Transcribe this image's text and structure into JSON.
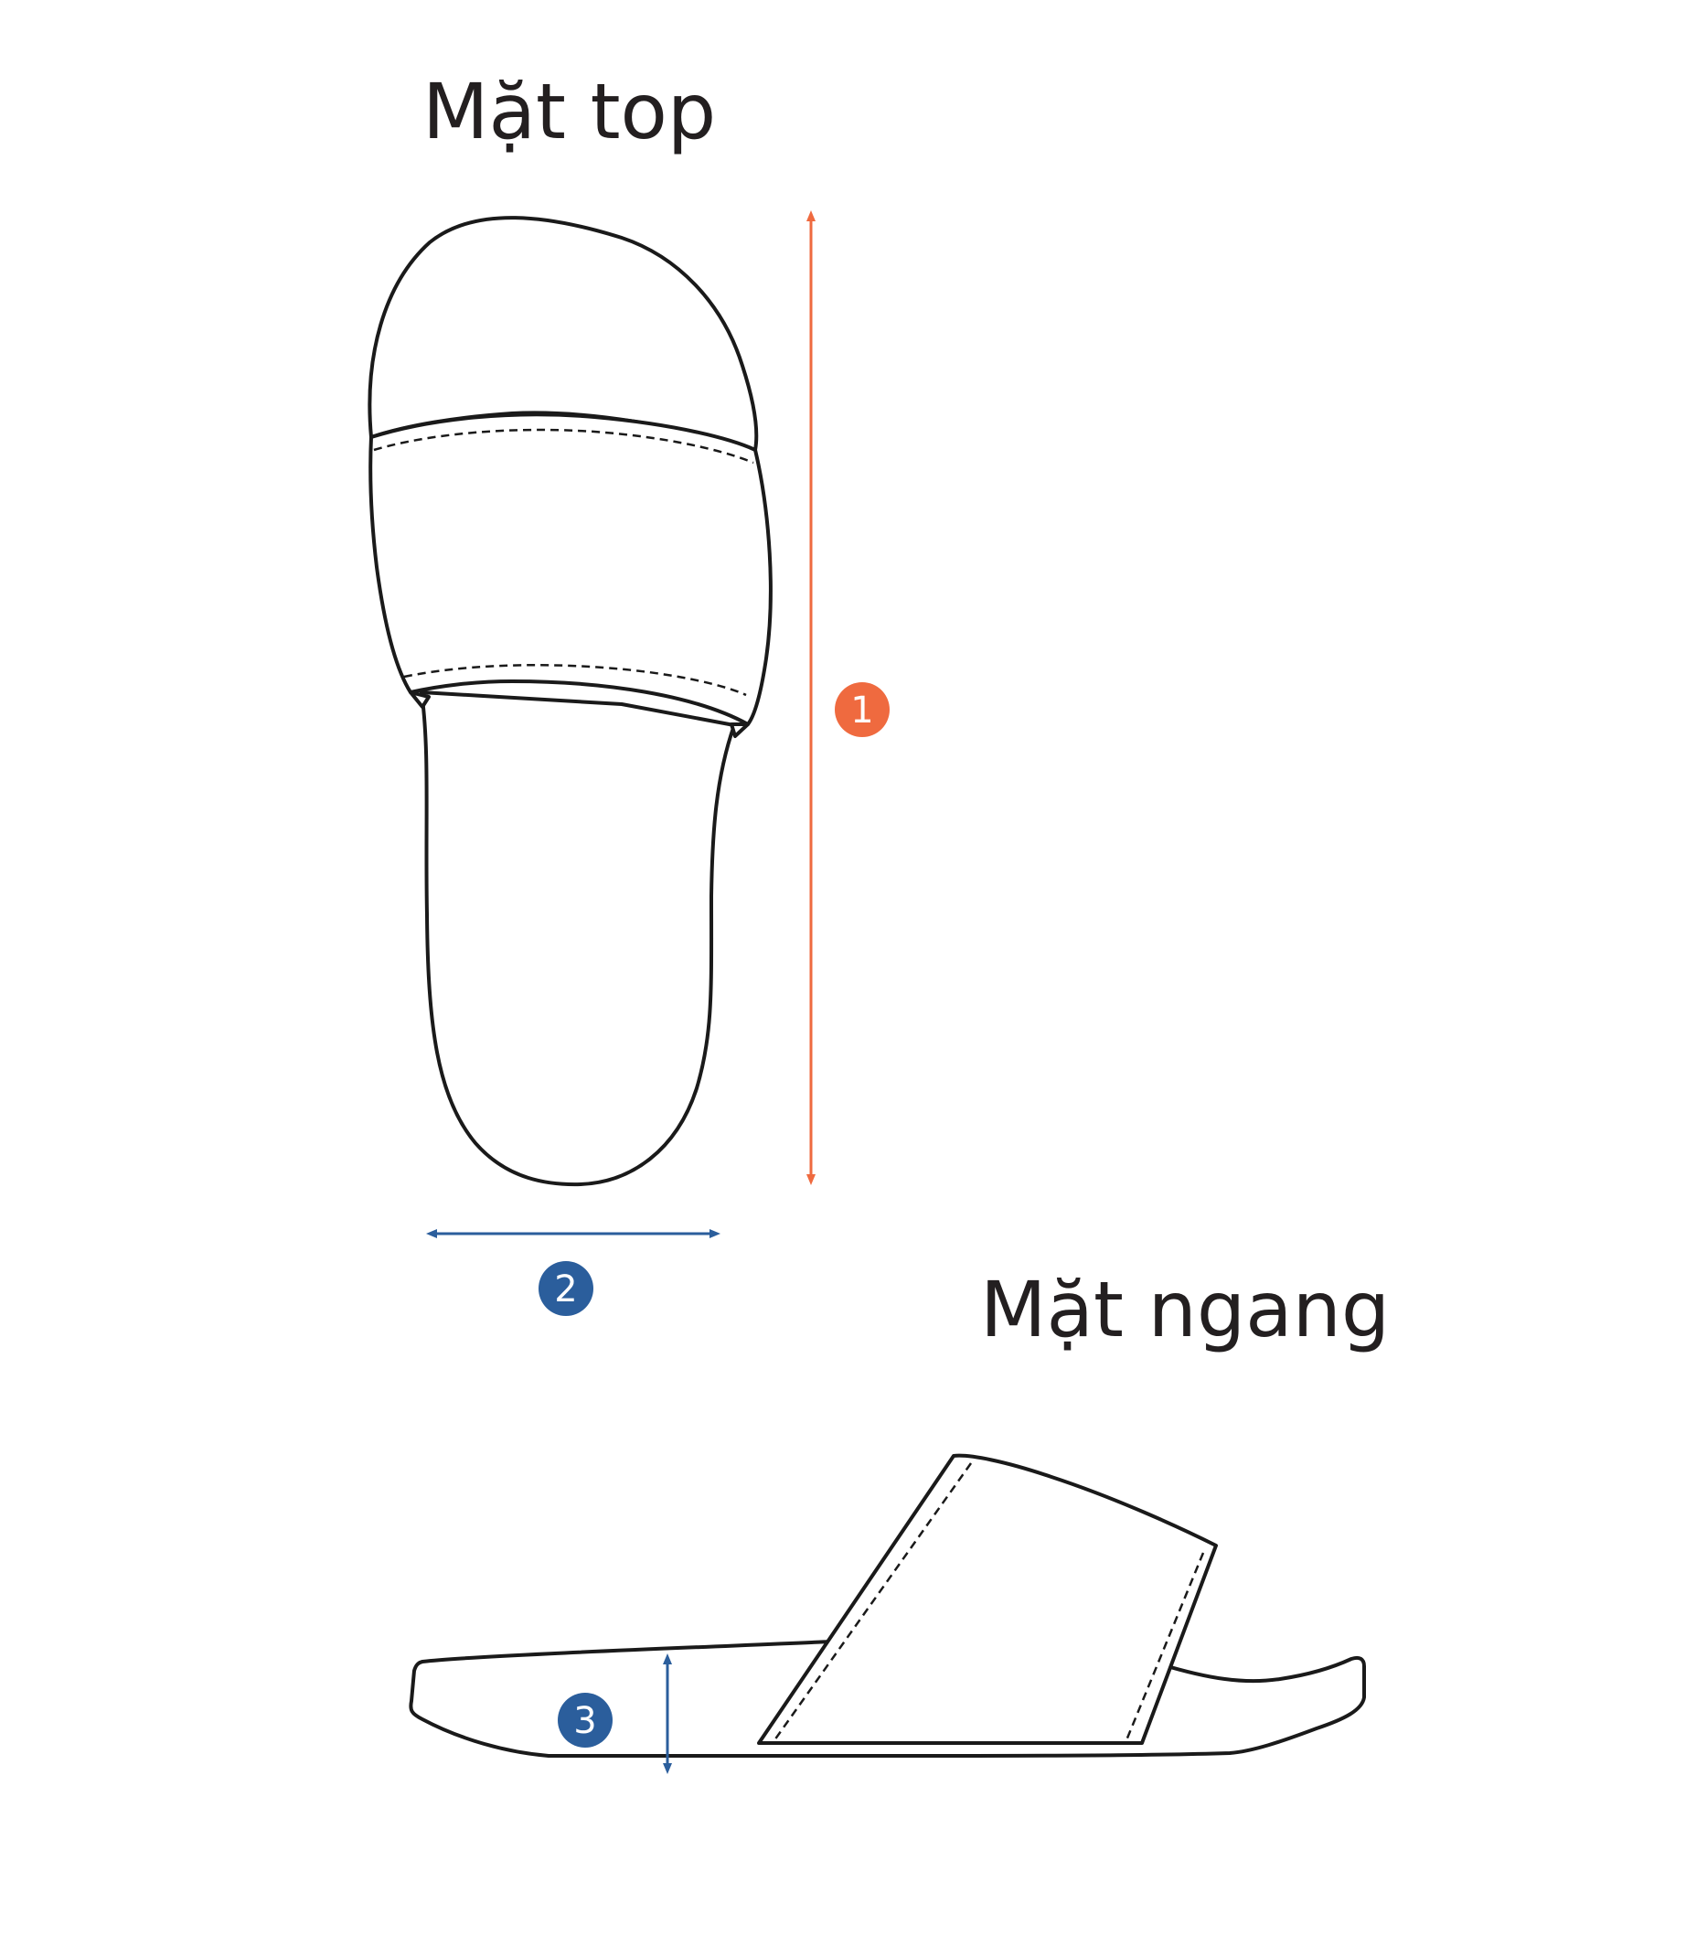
{
  "views": {
    "top": {
      "title": "Mặt top"
    },
    "side": {
      "title": "Mặt ngang"
    }
  },
  "measurements": [
    {
      "number": "1",
      "color": "#ef6a3f",
      "icon": "vertical-arrow"
    },
    {
      "number": "2",
      "color": "#2b5e9c",
      "icon": "horizontal-arrow"
    },
    {
      "number": "3",
      "color": "#2b5e9c",
      "icon": "vertical-arrow"
    }
  ]
}
